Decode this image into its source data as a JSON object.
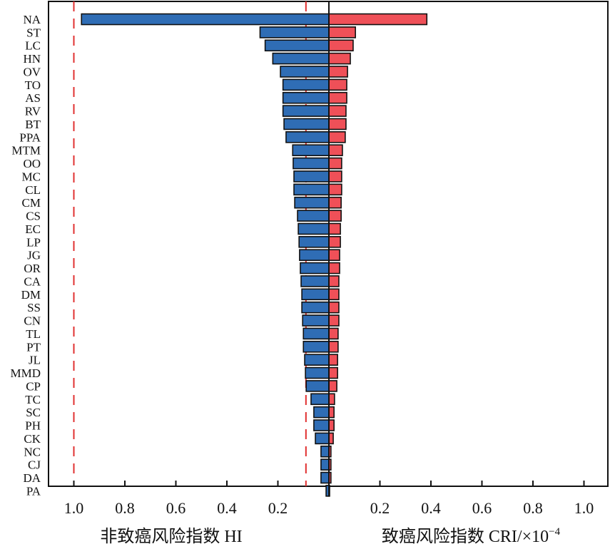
{
  "chart_data": {
    "type": "bar",
    "orientation": "horizontal-diverging",
    "categories": [
      "NA",
      "ST",
      "LC",
      "HN",
      "OV",
      "TO",
      "AS",
      "RV",
      "BT",
      "PPA",
      "MTM",
      "OO",
      "MC",
      "CL",
      "CM",
      "CS",
      "EC",
      "LP",
      "JG",
      "OR",
      "CA",
      "DM",
      "SS",
      "CN",
      "TL",
      "PT",
      "JL",
      "MMD",
      "CP",
      "TC",
      "SC",
      "PH",
      "CK",
      "NC",
      "CJ",
      "DA",
      "PA"
    ],
    "series": [
      {
        "name": "非致癌风险指数 HI",
        "side": "left",
        "color": "#2f6db5",
        "values": [
          0.97,
          0.27,
          0.25,
          0.22,
          0.19,
          0.18,
          0.18,
          0.18,
          0.176,
          0.168,
          0.142,
          0.14,
          0.137,
          0.137,
          0.134,
          0.123,
          0.12,
          0.117,
          0.115,
          0.112,
          0.109,
          0.106,
          0.106,
          0.103,
          0.1,
          0.1,
          0.095,
          0.092,
          0.089,
          0.07,
          0.059,
          0.059,
          0.053,
          0.031,
          0.031,
          0.031,
          0.011
        ]
      },
      {
        "name": "致癌风险指数 CRI/×10⁻⁴",
        "side": "right",
        "color": "#ef5058",
        "values": [
          0.384,
          0.104,
          0.095,
          0.084,
          0.073,
          0.07,
          0.07,
          0.067,
          0.067,
          0.064,
          0.053,
          0.05,
          0.05,
          0.05,
          0.048,
          0.048,
          0.045,
          0.045,
          0.042,
          0.042,
          0.039,
          0.039,
          0.039,
          0.039,
          0.036,
          0.036,
          0.034,
          0.034,
          0.031,
          0.022,
          0.02,
          0.02,
          0.017,
          0.008,
          0.008,
          0.008,
          0.001
        ]
      }
    ],
    "left_ticks": [
      "1.0",
      "0.8",
      "0.6",
      "0.4",
      "0.2"
    ],
    "right_ticks": [
      "0.2",
      "0.4",
      "0.6",
      "0.8",
      "1.0"
    ],
    "left_tick_values": [
      1.0,
      0.8,
      0.6,
      0.4,
      0.2
    ],
    "right_tick_values": [
      0.2,
      0.4,
      0.6,
      0.8,
      1.0
    ],
    "xlim": [
      0,
      1.1
    ],
    "reference_lines": [
      1.0,
      0.09
    ],
    "reference_line_color": "#e03030",
    "xlabel_left": "非致癌风险指数 HI",
    "xlabel_right": "致癌风险指数 CRI/×10",
    "xlabel_right_exp": "−4",
    "grid": false,
    "legend": "none"
  }
}
